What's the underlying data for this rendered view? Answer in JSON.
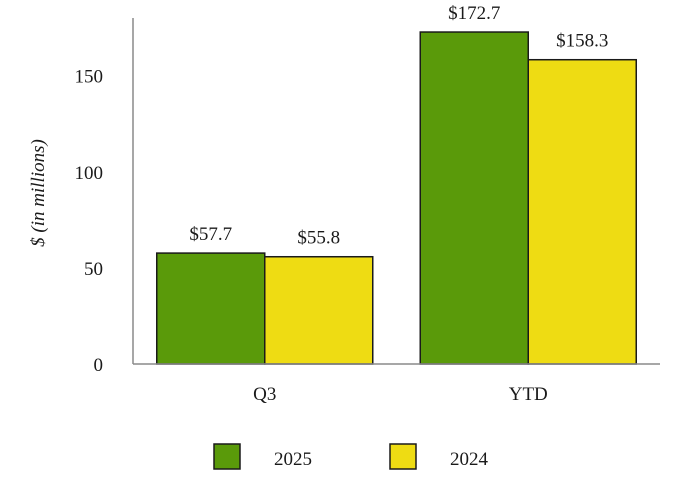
{
  "chart_data": {
    "type": "bar",
    "categories": [
      "Q3",
      "YTD"
    ],
    "series": [
      {
        "name": "2025",
        "values": [
          57.7,
          172.7
        ],
        "labels": [
          "$57.7",
          "$172.7"
        ],
        "color": "#5a9a0a"
      },
      {
        "name": "2024",
        "values": [
          55.8,
          158.3
        ],
        "labels": [
          "$55.8",
          "$158.3"
        ],
        "color": "#eedc13"
      }
    ],
    "ylabel": "$ (in millions)",
    "ylim": [
      0,
      180
    ],
    "yticks": [
      0,
      50,
      100,
      150
    ],
    "grid": false,
    "legend": "bottom"
  }
}
